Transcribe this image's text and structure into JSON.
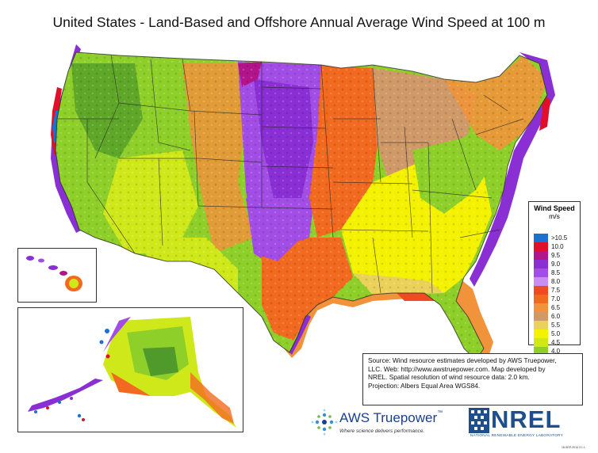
{
  "title": "United States - Land-Based and Offshore Annual Average Wind Speed at 100 m",
  "legend": {
    "title": "Wind Speed",
    "unit": "m/s",
    "classes": [
      {
        "label": ">10.5",
        "color": "#1d6fd1"
      },
      {
        "label": "10.0",
        "color": "#e0102a"
      },
      {
        "label": "9.5",
        "color": "#b2158a"
      },
      {
        "label": "9.0",
        "color": "#8a2fd4"
      },
      {
        "label": "8.5",
        "color": "#a24ee6"
      },
      {
        "label": "8.0",
        "color": "#c98ef0"
      },
      {
        "label": "7.5",
        "color": "#f04a23"
      },
      {
        "label": "7.0",
        "color": "#f26a20"
      },
      {
        "label": "6.5",
        "color": "#f0933a"
      },
      {
        "label": "6.0",
        "color": "#cf9a68"
      },
      {
        "label": "5.5",
        "color": "#ead25a"
      },
      {
        "label": "5.0",
        "color": "#f4f200"
      },
      {
        "label": "4.5",
        "color": "#cfe81a"
      },
      {
        "label": "4.0",
        "color": "#8fcf2a"
      },
      {
        "label": "< 4.0",
        "color": "#4f9a2a"
      }
    ]
  },
  "source": {
    "line1": "Source:  Wind resource estimates developed by AWS Truepower,",
    "line2": "LLC.  Web: http://www.awstruepower.com.  Map developed by",
    "line3": "NREL.  Spatial resolution of wind resource data: 2.0 km.",
    "line4": "Projection:  Albers Equal Area WGS84."
  },
  "logos": {
    "aws_name_a": "AWS",
    "aws_name_b": "Truepower",
    "aws_tm": "™",
    "aws_tagline": "Where science delivers performance.",
    "nrel_name": "NREL",
    "nrel_sub": "NATIONAL RENEWABLE ENERGY LABORATORY",
    "date": "16-SEP-2014 3.1.1"
  },
  "colors": {
    "ocean_coast_purple": "#8a2fd4",
    "great_plains_purple": "#a24ee6",
    "southeast_yellow": "#f4f200",
    "west_green": "#8fcf2a",
    "midwest_orange": "#f26a20"
  }
}
